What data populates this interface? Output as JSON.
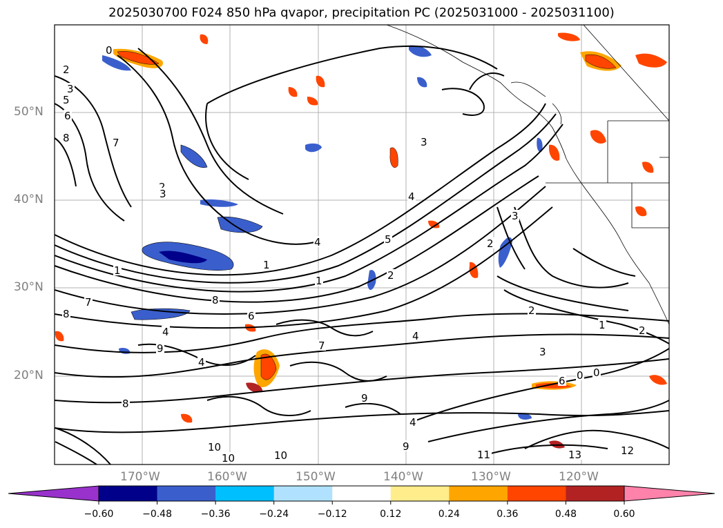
{
  "title": "2025030700 F024 850 hPa qvapor, precipitation PC (2025031000 - 2025031100)",
  "map": {
    "lat_ticks": [
      "50°N",
      "40°N",
      "30°N",
      "20°N"
    ],
    "lon_ticks": [
      "170°W",
      "160°W",
      "150°W",
      "140°W",
      "130°W",
      "120°W"
    ],
    "contour_labels": [
      "0",
      "2",
      "3",
      "5",
      "6",
      "7",
      "8",
      "2",
      "3",
      "1",
      "4",
      "5",
      "1",
      "2",
      "3",
      "4",
      "1",
      "4",
      "8",
      "7",
      "8",
      "4",
      "6",
      "9",
      "7",
      "4",
      "3",
      "2",
      "1",
      "2",
      "6",
      "0",
      "0",
      "9",
      "8",
      "10",
      "10",
      "10",
      "9",
      "11",
      "12",
      "13",
      "2",
      "3",
      "4"
    ]
  },
  "colorbar": {
    "colors": [
      "#9932cc",
      "#00008b",
      "#3a5fcd",
      "#00bfff",
      "#b0e2ff",
      "#ffffff",
      "#ffec8b",
      "#ffa500",
      "#ff4500",
      "#b22222",
      "#ff82ab"
    ],
    "labels": [
      "−0.60",
      "−0.48",
      "−0.36",
      "−0.24",
      "−0.12",
      "0.12",
      "0.24",
      "0.36",
      "0.48",
      "0.60"
    ]
  }
}
